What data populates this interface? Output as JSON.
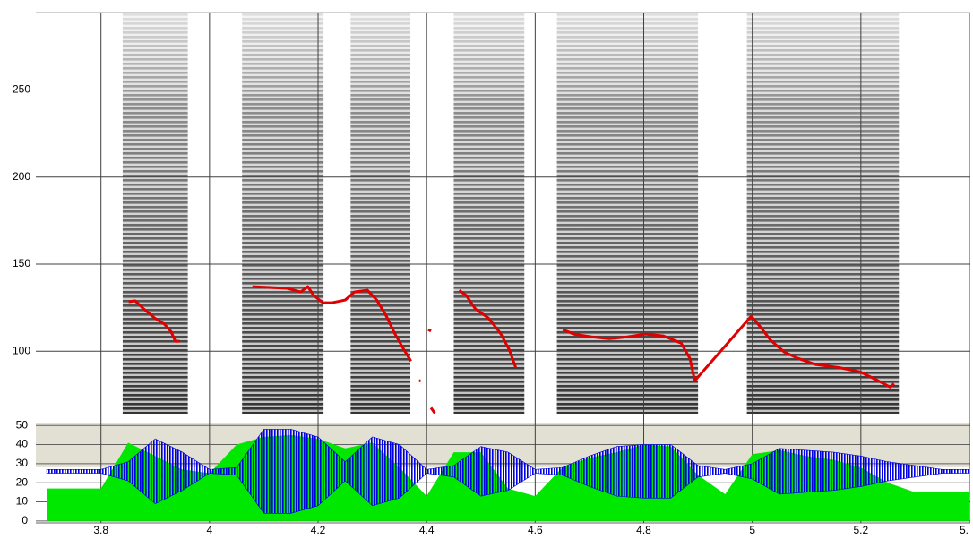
{
  "chart_data": [
    {
      "type": "line",
      "ylim": [
        60,
        294
      ],
      "yticks": [
        100,
        150,
        200,
        250
      ],
      "grid": true,
      "voiced_intervals": [
        [
          3.84,
          3.96
        ],
        [
          4.06,
          4.21
        ],
        [
          4.26,
          4.37
        ],
        [
          4.45,
          4.58
        ],
        [
          4.64,
          4.9
        ],
        [
          4.99,
          5.27
        ]
      ],
      "spectrogram_color": "#505050",
      "x": [
        3.851,
        3.863,
        3.879,
        3.899,
        3.917,
        3.929,
        3.937,
        3.945,
        3.95,
        4.079,
        4.11,
        4.143,
        4.168,
        4.181,
        4.192,
        4.209,
        4.225,
        4.25,
        4.267,
        4.291,
        4.308,
        4.325,
        4.341,
        4.358,
        4.371,
        4.375,
        4.386,
        4.389,
        4.395,
        4.403,
        4.408,
        4.412,
        4.408,
        4.415,
        4.42,
        4.46,
        4.473,
        4.49,
        4.514,
        4.536,
        4.552,
        4.564,
        4.57,
        4.651,
        4.671,
        4.704,
        4.737,
        4.77,
        4.803,
        4.836,
        4.869,
        4.885,
        4.894,
        4.998,
        5.015,
        5.034,
        5.059,
        5.084,
        5.117,
        5.158,
        5.199,
        5.232,
        5.254,
        5.261
      ],
      "series": [
        {
          "color": "#e00000",
          "values": [
            128.4,
            128.9,
            124.2,
            119,
            115.5,
            111.3,
            105.7,
            105.7,
            null,
            137.1,
            136.6,
            136.1,
            134,
            137.1,
            132,
            127.8,
            127.8,
            129.4,
            134,
            135,
            129.4,
            120.6,
            110.3,
            101,
            94.3,
            null,
            83,
            83,
            null,
            112.4,
            111.5,
            null,
            67.5,
            64.4,
            null,
            135,
            132,
            124.2,
            119,
            110.3,
            101,
            90.7,
            null,
            112.4,
            109.8,
            108.2,
            107.2,
            108.2,
            109.8,
            108.8,
            104.6,
            95.9,
            83,
            120.1,
            113.9,
            106.2,
            99.5,
            95.9,
            92.3,
            90.7,
            88.1,
            83,
            79.4,
            81.4
          ]
        }
      ]
    },
    {
      "type": "area",
      "xlim": [
        3.68,
        5.4
      ],
      "xticks": [
        3.8,
        4,
        4.2,
        4.4,
        4.6,
        4.8,
        5,
        5.2,
        {
          "value": 5.4,
          "label": "5."
        }
      ],
      "ylim": [
        -1,
        51.5
      ],
      "yticks": [
        0,
        10,
        20,
        30,
        40,
        50
      ],
      "grid": true,
      "x": [
        3.7,
        3.75,
        3.8,
        3.85,
        3.9,
        3.95,
        4.0,
        4.05,
        4.1,
        4.15,
        4.2,
        4.25,
        4.3,
        4.35,
        4.4,
        4.45,
        4.5,
        4.55,
        4.6,
        4.65,
        4.7,
        4.75,
        4.8,
        4.85,
        4.9,
        4.95,
        5.0,
        5.05,
        5.1,
        5.15,
        5.2,
        5.25,
        5.3,
        5.35,
        5.4
      ],
      "waveform_center": 26,
      "series": [
        {
          "color": "#00e800",
          "values": [
            17,
            17,
            17,
            41,
            34,
            27,
            25,
            40,
            44,
            45,
            43,
            38,
            41,
            28,
            13,
            36,
            36,
            17,
            13,
            28,
            33,
            36,
            40,
            39,
            24,
            14,
            35,
            37,
            34,
            32,
            28,
            20,
            15,
            15,
            15
          ]
        },
        {
          "color": "#0000e0",
          "values": [
            1,
            1,
            1,
            5,
            17,
            10,
            1,
            2,
            22,
            22,
            18,
            5,
            18,
            14,
            1,
            3,
            13,
            10,
            1,
            2,
            8,
            13,
            14,
            14,
            3,
            1,
            4,
            12,
            11,
            10,
            8,
            5,
            3,
            1,
            1
          ]
        }
      ]
    }
  ]
}
